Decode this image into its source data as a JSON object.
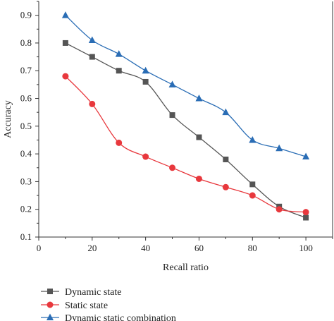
{
  "chart_data": {
    "type": "line",
    "title": "",
    "xlabel": "Recall ratio",
    "ylabel": "Accuracy",
    "xlim": [
      0,
      110
    ],
    "ylim": [
      0.1,
      0.95
    ],
    "xticks": [
      0,
      20,
      40,
      60,
      80,
      100
    ],
    "yticks": [
      0.1,
      0.2,
      0.3,
      0.4,
      0.5,
      0.6,
      0.7,
      0.8,
      0.9
    ],
    "grid": false,
    "legend_position": "bottom",
    "x": [
      10,
      20,
      30,
      40,
      50,
      60,
      70,
      80,
      90,
      100
    ],
    "series": [
      {
        "name": "Dynamic state",
        "color": "#555555",
        "marker": "square",
        "values": [
          0.8,
          0.75,
          0.7,
          0.66,
          0.54,
          0.46,
          0.38,
          0.29,
          0.21,
          0.17
        ]
      },
      {
        "name": "Static state",
        "color": "#e8383d",
        "marker": "circle",
        "values": [
          0.68,
          0.58,
          0.44,
          0.39,
          0.35,
          0.31,
          0.28,
          0.25,
          0.2,
          0.19
        ]
      },
      {
        "name": "Dynamic static combination",
        "color": "#2a6db5",
        "marker": "triangle",
        "values": [
          0.9,
          0.81,
          0.76,
          0.7,
          0.65,
          0.6,
          0.55,
          0.45,
          0.42,
          0.39
        ]
      }
    ]
  }
}
